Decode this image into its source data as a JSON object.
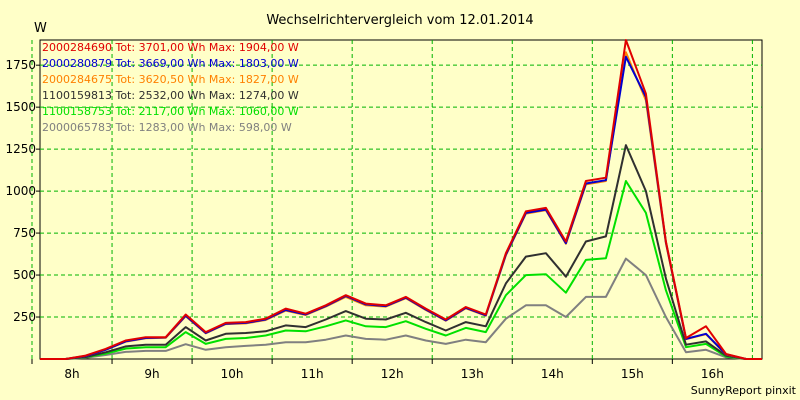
{
  "chart_data": {
    "type": "line",
    "title": "Wechselrichtervergleich vom 12.01.2014",
    "ylabel": "W",
    "xlabel": "",
    "footer": "SunnyReport pinxit",
    "grid": true,
    "ylim": [
      0,
      1900
    ],
    "xlim": [
      7.6,
      16.62
    ],
    "yticks": [
      250,
      500,
      750,
      1000,
      1250,
      1500,
      1750
    ],
    "xticks": [
      {
        "value": 8,
        "label": "8h"
      },
      {
        "value": 9,
        "label": "9h"
      },
      {
        "value": 10,
        "label": "10h"
      },
      {
        "value": 11,
        "label": "11h"
      },
      {
        "value": 12,
        "label": "12h"
      },
      {
        "value": 13,
        "label": "13h"
      },
      {
        "value": 14,
        "label": "14h"
      },
      {
        "value": 15,
        "label": "15h"
      },
      {
        "value": 16,
        "label": "16h"
      }
    ],
    "x": [
      7.6,
      7.92,
      8.17,
      8.42,
      8.67,
      8.92,
      9.17,
      9.42,
      9.67,
      9.92,
      10.17,
      10.42,
      10.67,
      10.92,
      11.17,
      11.42,
      11.67,
      11.92,
      12.17,
      12.42,
      12.67,
      12.92,
      13.17,
      13.42,
      13.67,
      13.92,
      14.17,
      14.42,
      14.67,
      14.92,
      15.17,
      15.42,
      15.67,
      15.92,
      16.17,
      16.42,
      16.62
    ],
    "series": [
      {
        "name": "2000284690",
        "legend": "2000284690 Tot: 3701,00 Wh Max: 1904,00 W",
        "color": "#e00000",
        "values": [
          0,
          0,
          20,
          60,
          110,
          130,
          130,
          265,
          160,
          215,
          220,
          240,
          300,
          270,
          320,
          380,
          330,
          320,
          370,
          300,
          235,
          310,
          265,
          630,
          880,
          900,
          700,
          1060,
          1080,
          1900,
          1580,
          700,
          125,
          195,
          30,
          0,
          0
        ]
      },
      {
        "name": "2000280879",
        "legend": "2000280879 Tot: 3669,00 Wh Max: 1803,00 W",
        "color": "#0000d0",
        "values": [
          0,
          0,
          18,
          55,
          105,
          125,
          128,
          258,
          155,
          210,
          215,
          235,
          292,
          265,
          315,
          375,
          325,
          315,
          365,
          295,
          230,
          305,
          260,
          622,
          870,
          890,
          690,
          1045,
          1065,
          1800,
          1560,
          695,
          120,
          150,
          28,
          0,
          0
        ]
      },
      {
        "name": "2000284675",
        "legend": "2000284675 Tot: 3620,50 Wh Max: 1827,00 W",
        "color": "#ff8000",
        "values": [
          0,
          0,
          18,
          55,
          103,
          123,
          126,
          255,
          153,
          208,
          212,
          232,
          288,
          262,
          312,
          370,
          320,
          312,
          362,
          292,
          228,
          302,
          258,
          618,
          866,
          886,
          686,
          1040,
          1060,
          1827,
          1540,
          690,
          118,
          148,
          27,
          0,
          0
        ]
      },
      {
        "name": "1100159813",
        "legend": "1100159813 Tot: 2532,00 Wh Max: 1274,00 W",
        "color": "#303030",
        "values": [
          0,
          0,
          12,
          40,
          75,
          85,
          85,
          190,
          110,
          150,
          155,
          165,
          200,
          190,
          235,
          285,
          240,
          235,
          275,
          220,
          170,
          220,
          195,
          450,
          610,
          630,
          490,
          700,
          730,
          1274,
          1000,
          480,
          85,
          105,
          20,
          0,
          0
        ]
      },
      {
        "name": "1100158753",
        "legend": "1100158753 Tot: 2117,00 Wh Max: 1060,00 W",
        "color": "#00e000",
        "values": [
          0,
          0,
          10,
          32,
          62,
          70,
          70,
          160,
          90,
          120,
          125,
          140,
          170,
          165,
          195,
          230,
          195,
          190,
          225,
          180,
          140,
          185,
          160,
          380,
          500,
          505,
          395,
          590,
          600,
          1060,
          870,
          410,
          70,
          90,
          15,
          0,
          0
        ]
      },
      {
        "name": "2000065783",
        "legend": "2000065783 Tot: 1283,00 Wh Max: 598,00 W",
        "color": "#808080",
        "values": [
          0,
          0,
          8,
          24,
          42,
          48,
          48,
          88,
          55,
          70,
          78,
          85,
          100,
          100,
          115,
          140,
          120,
          115,
          140,
          110,
          90,
          115,
          100,
          240,
          320,
          320,
          250,
          370,
          370,
          598,
          500,
          250,
          40,
          55,
          10,
          0,
          0
        ]
      }
    ]
  }
}
